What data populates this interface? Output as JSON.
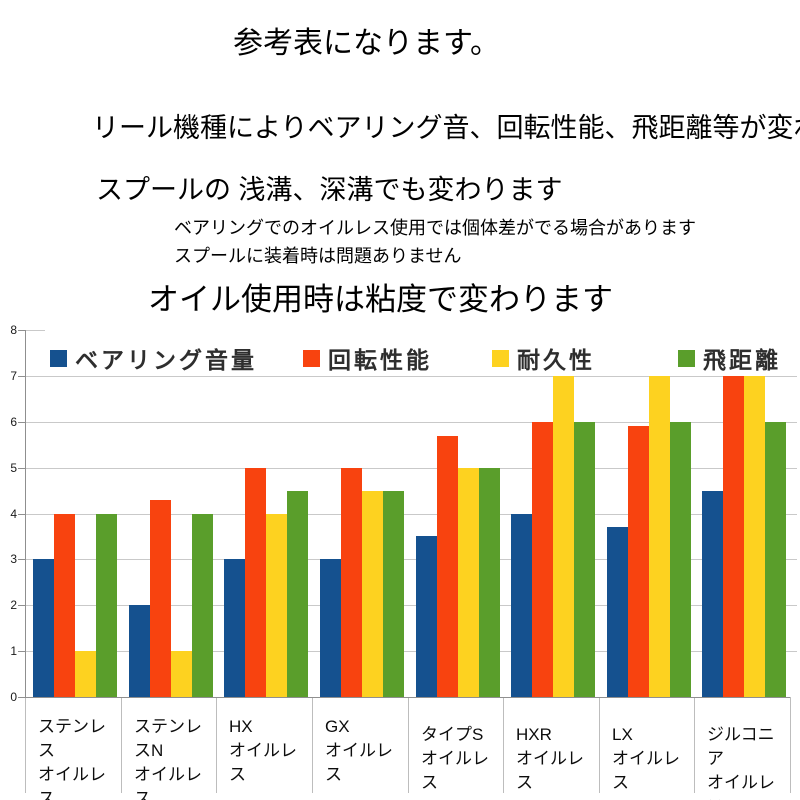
{
  "page": {
    "background": "#ffffff"
  },
  "header": {
    "title": "参考表になります。",
    "intro_line1": "リール機種によりベアリング音、回転性能、飛距離等が変わります。",
    "intro_line2": "スプールの 浅溝、深溝でも変わります",
    "note_line1": "ベアリングでのオイルレス使用では個体差がでる場合があります",
    "note_line2": "スプールに装着時は問題ありません",
    "statement": "オイル使用時は粘度で変わります"
  },
  "chart_data": {
    "type": "bar",
    "title": "",
    "xlabel": "",
    "ylabel": "",
    "categories": [
      "ステンレス\nオイルレス",
      "ステンレスN\nオイルレス",
      "HX\nオイルレス",
      "GX\nオイルレス",
      "タイプS\nオイルレス",
      "HXR\nオイルレス",
      "LX\nオイルレス",
      "ジルコニア\nオイルレス"
    ],
    "series": [
      {
        "name": "ベアリング音量",
        "color": "#15518f",
        "values": [
          3,
          2,
          3,
          3,
          3.5,
          4,
          3.7,
          4.5
        ]
      },
      {
        "name": "回転性能",
        "color": "#f8430f",
        "values": [
          4,
          4.3,
          5,
          5,
          5.7,
          6,
          5.9,
          7
        ]
      },
      {
        "name": "耐久性",
        "color": "#fdd220",
        "values": [
          1,
          1,
          4,
          4.5,
          5,
          7,
          7,
          7
        ]
      },
      {
        "name": "飛距離",
        "color": "#5a9e2b",
        "values": [
          4,
          4,
          4.5,
          4.5,
          5,
          6,
          6,
          6
        ]
      }
    ],
    "ylim": [
      0,
      8
    ],
    "yticks": [
      0,
      1,
      2,
      3,
      4,
      5,
      6,
      7,
      8
    ],
    "grid": true,
    "legend_position": "top-inside"
  },
  "chart_colors": {
    "grid": "#c9c9c9",
    "axis": "#8f8f8f",
    "separator": "#bdbdbd",
    "tick_label": "#1a1a1a",
    "legend_text": "#2e2e2e"
  }
}
